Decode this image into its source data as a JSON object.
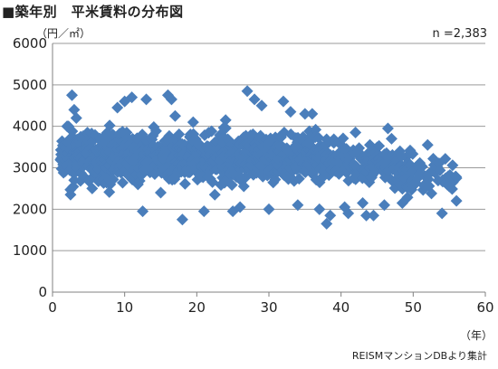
{
  "title": "■築年別　平米賃料の分布図",
  "y_unit": "（円／㎡）",
  "x_unit": "（年）",
  "count": "n =2,383",
  "source": "REISMマンションDBより集計",
  "colors": {
    "marker": "#4a7ebb",
    "grid": "#9a9a9a",
    "axis": "#808080"
  },
  "chart_data": {
    "type": "scatter",
    "xlim": [
      0,
      60
    ],
    "ylim": [
      0,
      6000
    ],
    "x_ticks": [
      0,
      10,
      20,
      30,
      40,
      50,
      60
    ],
    "y_ticks": [
      0,
      1000,
      2000,
      3000,
      4000,
      5000,
      6000
    ],
    "grid": true,
    "marker": "diamond",
    "series": [
      {
        "points": [
          [
            2.7,
            4750
          ],
          [
            3.0,
            4400
          ],
          [
            3.3,
            4200
          ],
          [
            2.5,
            2350
          ],
          [
            3.0,
            2700
          ],
          [
            9.0,
            4450
          ],
          [
            10.0,
            4600
          ],
          [
            11.0,
            4700
          ],
          [
            13.0,
            4650
          ],
          [
            16.0,
            4750
          ],
          [
            16.5,
            4650
          ],
          [
            12.5,
            1950
          ],
          [
            17.0,
            4250
          ],
          [
            18.0,
            1750
          ],
          [
            21.0,
            1950
          ],
          [
            19.5,
            4100
          ],
          [
            24.0,
            4150
          ],
          [
            27.0,
            4850
          ],
          [
            28.0,
            4650
          ],
          [
            29.0,
            4500
          ],
          [
            32.0,
            4600
          ],
          [
            33.0,
            4350
          ],
          [
            35.0,
            4300
          ],
          [
            36.0,
            4300
          ],
          [
            38.0,
            1650
          ],
          [
            39.0,
            3600
          ],
          [
            40.0,
            3550
          ],
          [
            40.5,
            2050
          ],
          [
            42.0,
            3850
          ],
          [
            43.0,
            2150
          ],
          [
            44.0,
            3550
          ],
          [
            45.0,
            3350
          ],
          [
            46.5,
            3950
          ],
          [
            47.0,
            3700
          ],
          [
            48.0,
            3350
          ],
          [
            49.0,
            3250
          ],
          [
            50.0,
            2950
          ],
          [
            52.0,
            3550
          ],
          [
            52.5,
            2900
          ],
          [
            54.0,
            1900
          ],
          [
            54.5,
            2750
          ],
          [
            55.0,
            2550
          ],
          [
            55.5,
            2650
          ],
          [
            56.0,
            2750
          ],
          [
            56.0,
            2200
          ],
          [
            43.5,
            1850
          ],
          [
            44.5,
            1850
          ],
          [
            41.0,
            1900
          ],
          [
            46.0,
            2100
          ],
          [
            48.5,
            2150
          ],
          [
            37.0,
            2000
          ],
          [
            38.5,
            1850
          ],
          [
            34.0,
            2100
          ],
          [
            30.0,
            2000
          ],
          [
            25.0,
            1950
          ],
          [
            26.0,
            2050
          ],
          [
            22.5,
            2350
          ],
          [
            15.0,
            2400
          ],
          [
            8.0,
            2600
          ],
          [
            5.5,
            2500
          ]
        ]
      }
    ]
  }
}
